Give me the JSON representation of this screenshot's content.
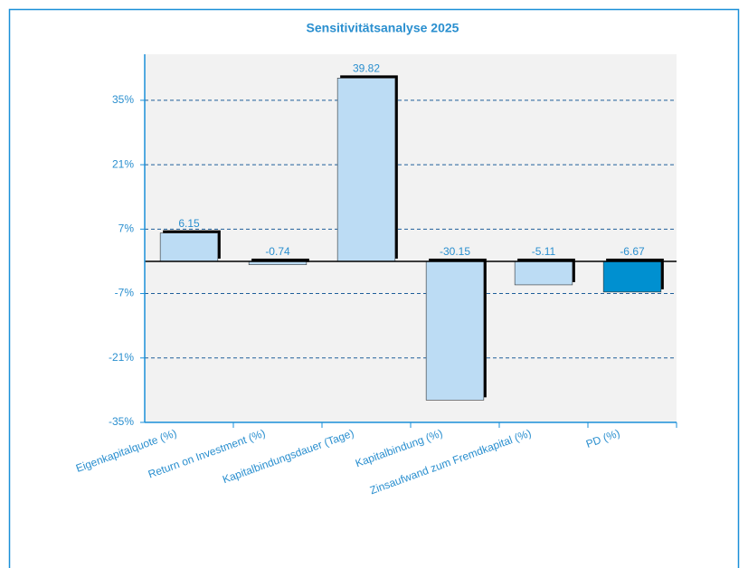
{
  "chart_data": {
    "type": "bar",
    "title": "Sensitivitätsanalyse  2025",
    "categories": [
      "Eigenkapitalquote (%)",
      "Return on Investment (%)",
      "Kapitalbindungsdauer (Tage)",
      "Kapitalbindung (%)",
      "Zinsaufwand zum Fremdkapital (%)",
      "PD (%)"
    ],
    "values": [
      6.15,
      -0.74,
      39.82,
      -30.15,
      -5.11,
      -6.67
    ],
    "colors": [
      "#bcdcf4",
      "#bcdcf4",
      "#bcdcf4",
      "#bcdcf4",
      "#bcdcf4",
      "#0090d0"
    ],
    "ylim": [
      -35,
      45
    ],
    "yticks": [
      {
        "value": -35,
        "label": "-35%"
      },
      {
        "value": -21,
        "label": "-21%"
      },
      {
        "value": -7,
        "label": "-7%"
      },
      {
        "value": 7,
        "label": "7%"
      },
      {
        "value": 21,
        "label": "21%"
      },
      {
        "value": 35,
        "label": "35%"
      }
    ],
    "grid": true
  }
}
